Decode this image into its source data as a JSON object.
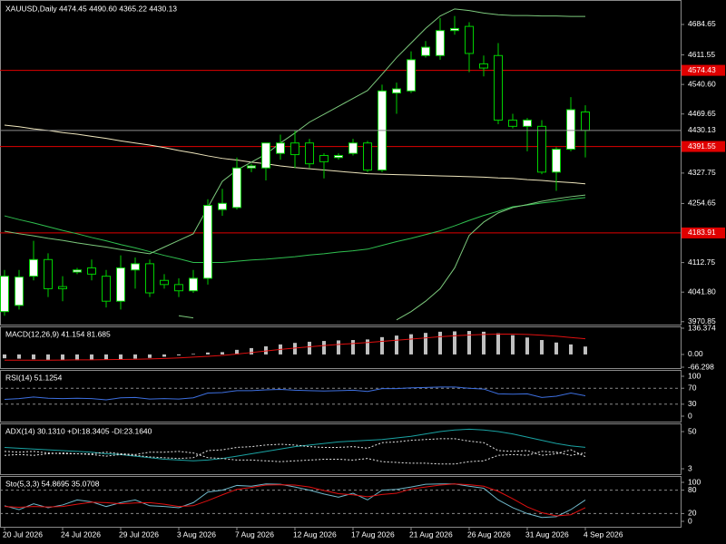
{
  "chart_data": [
    {
      "type": "candlestick",
      "title": "XAUUSD,Daily  4474.45 4490.60 4365.22 4430.13",
      "categories": [
        "20 Jul 2026",
        null,
        null,
        null,
        "24 Jul 2026",
        null,
        null,
        null,
        "29 Jul 2026",
        null,
        null,
        null,
        "3 Aug 2026",
        null,
        null,
        null,
        "7 Aug 2026",
        null,
        null,
        null,
        "12 Aug 2026",
        null,
        null,
        null,
        "17 Aug 2026",
        null,
        null,
        null,
        "21 Aug 2026",
        null,
        null,
        null,
        "26 Aug 2026",
        null,
        null,
        null,
        "31 Aug 2026",
        null,
        null,
        null,
        "4 Sep 2026"
      ],
      "open": [
        3995,
        4010,
        4080,
        4120,
        4055,
        4090,
        4100,
        4080,
        4020,
        4095,
        4110,
        4070,
        4060,
        4045,
        4075,
        4240,
        4245,
        4340,
        4340,
        4375,
        4400,
        4400,
        4370,
        4365,
        4375,
        4400,
        4335,
        4520,
        4525,
        4610,
        4610,
        4670,
        4680,
        4590,
        4610,
        4455,
        4440,
        4440,
        4330,
        4385,
        4474.45
      ],
      "high": [
        4095,
        4095,
        4165,
        4135,
        4080,
        4100,
        4120,
        4095,
        4130,
        4125,
        4120,
        4085,
        4075,
        4095,
        4265,
        4290,
        4365,
        4350,
        4400,
        4420,
        4430,
        4410,
        4375,
        4375,
        4410,
        4405,
        4540,
        4545,
        4620,
        4645,
        4700,
        4705,
        4690,
        4610,
        4640,
        4470,
        4460,
        4455,
        4390,
        4510,
        4490.6
      ],
      "low": [
        3985,
        4000,
        4070,
        4030,
        4020,
        4085,
        4070,
        4005,
        4000,
        4050,
        4030,
        4050,
        4030,
        4040,
        4060,
        4225,
        4240,
        4330,
        4310,
        4360,
        4340,
        4340,
        4315,
        4360,
        4370,
        4330,
        4330,
        4470,
        4520,
        4605,
        4600,
        4660,
        4570,
        4560,
        4445,
        4435,
        4380,
        4325,
        4285,
        4380,
        4365.22
      ],
      "close": [
        4080,
        4078,
        4120,
        4050,
        4050,
        4095,
        4085,
        4020,
        4100,
        4110,
        4040,
        4060,
        4045,
        4075,
        4250,
        4255,
        4340,
        4345,
        4400,
        4400,
        4372,
        4350,
        4355,
        4370,
        4400,
        4335,
        4525,
        4530,
        4600,
        4630,
        4670,
        4675,
        4615,
        4580,
        4455,
        4440,
        4455,
        4330,
        4385,
        4480,
        4430.13
      ],
      "up_color": "#ffffff",
      "down_color": "#000000",
      "wick_color": "#00d000",
      "series": [
        {
          "color": "#efe6bd",
          "values": [
            4443,
            4439,
            4434,
            4430,
            4425,
            4421,
            4416,
            4411,
            4405,
            4400,
            4395,
            4389,
            4382,
            4376,
            4369,
            4363,
            4359,
            4354,
            4350,
            4345,
            4341,
            4338,
            4335,
            4332,
            4329,
            4326,
            4325,
            4324,
            4323,
            4322,
            4321,
            4320,
            4319,
            4318,
            4316,
            4315,
            4312,
            4310,
            4307,
            4305,
            4302
          ]
        },
        {
          "color": "#2fbf4f",
          "values": [
            4225,
            4216,
            4208,
            4199,
            4190,
            4182,
            4173,
            4165,
            4156,
            4148,
            4139,
            4130,
            4122,
            4113,
            4113,
            4113,
            4116,
            4119,
            4121,
            4124,
            4127,
            4131,
            4134,
            4138,
            4141,
            4145,
            4154,
            4163,
            4171,
            4180,
            4189,
            4201,
            4214,
            4226,
            4236,
            4247,
            4251,
            4256,
            4260,
            4265,
            4269
          ]
        },
        {
          "color": "#7cc97c",
          "values": [
            4188,
            4182,
            4177,
            4171,
            4166,
            4160,
            4155,
            4150,
            4144,
            4139,
            4134,
            4150,
            4166,
            4182,
            4245,
            4308,
            4335,
            4354,
            4373,
            4400,
            4424,
            4450,
            4469,
            4488,
            4507,
            4526,
            4565,
            4605,
            4640,
            4675,
            4705,
            4722,
            4718,
            4712,
            4708,
            4706,
            4706,
            4705,
            4705,
            4704,
            4704
          ]
        },
        {
          "color": "#7cc97c",
          "values": [
            null,
            null,
            null,
            null,
            null,
            null,
            null,
            null,
            null,
            null,
            null,
            null,
            3985,
            3980,
            null,
            null,
            null,
            null,
            null,
            null,
            null,
            null,
            null,
            null,
            null,
            null,
            null,
            3975,
            3995,
            4020,
            4050,
            4100,
            4178,
            4210,
            4232,
            4245,
            4252,
            4260,
            4266,
            4271,
            4275
          ]
        }
      ],
      "hlines": [
        4574.43,
        4391.55,
        4183.91
      ],
      "hline_color": "#e00000",
      "last_price_line": true,
      "last_price_color": "#8c8c8c",
      "ylim": [
        3966,
        4743.4
      ],
      "yticks": [
        4684.65,
        4611.55,
        {
          "value": 4540.6,
          "label": "4540.60"
        },
        4469.65,
        4327.75,
        4254.65,
        4112.75,
        {
          "value": 4041.8,
          "label": "4041.80"
        },
        3970.85
      ]
    },
    {
      "type": "macd",
      "label": "MACD(12,26,9) 41.154 81.685",
      "color": "#c0c0c0",
      "values": [
        -20,
        -22,
        -25,
        -28,
        -30,
        -30,
        -28,
        -26,
        -25,
        -22,
        -18,
        -12,
        -5,
        3,
        10,
        12,
        24,
        33,
        42,
        52,
        60,
        66,
        70,
        73,
        75,
        78,
        90,
        98,
        105,
        112,
        118,
        120,
        122,
        118,
        110,
        100,
        88,
        75,
        62,
        52,
        41.154
      ],
      "series": [
        {
          "color": "#e01010",
          "values": [
            -30,
            -30,
            -30,
            -30,
            -29,
            -28,
            -28,
            -27,
            -26,
            -25,
            -23,
            -21,
            -18,
            -14,
            -10,
            -5,
            2,
            10,
            18,
            26,
            33,
            40,
            46,
            52,
            57,
            62,
            68,
            74,
            80,
            86,
            92,
            97,
            101,
            104,
            106,
            106,
            104,
            100,
            95,
            88,
            81.685
          ]
        }
      ],
      "ylim": [
        -66.298,
        136.374
      ],
      "yticks": [
        136.374,
        {
          "value": 0,
          "label": "0.00"
        },
        -66.298
      ]
    },
    {
      "type": "line",
      "label": "RSI(14) 51.1254",
      "series": [
        {
          "color": "#3d6fe0",
          "values": [
            42,
            44,
            48,
            45,
            44,
            45,
            44,
            41,
            46,
            47,
            43,
            44,
            43,
            46,
            58,
            59,
            64,
            64,
            66,
            67,
            65,
            64,
            63,
            64,
            65,
            62,
            69,
            69,
            71,
            72,
            73,
            73,
            70,
            68,
            56,
            55,
            56,
            47,
            50,
            58,
            51.1254
          ]
        }
      ],
      "levels": [
        70,
        30
      ],
      "ylim": [
        0,
        100
      ],
      "yticks": [
        100,
        70,
        30,
        0
      ]
    },
    {
      "type": "line",
      "label": "ADX(14) 30.1310 +DI:18.3405 -DI:23.1640",
      "series": [
        {
          "color": "#1aa3a3",
          "values": [
            30,
            29,
            28,
            27,
            26,
            25,
            24,
            22,
            21,
            19,
            17,
            15,
            14,
            13,
            14,
            16,
            19,
            22,
            25,
            28,
            31,
            33,
            35,
            37,
            38,
            39,
            40,
            42,
            44,
            47,
            50,
            52,
            53,
            52,
            50,
            47,
            43,
            39,
            35,
            32,
            30.131
          ]
        },
        {
          "color": "#e8e8e8",
          "dashed": true,
          "values": [
            25,
            24,
            25,
            23,
            22,
            22,
            21,
            19,
            21,
            20,
            18,
            17,
            16,
            17,
            26,
            27,
            30,
            31,
            33,
            34,
            33,
            31,
            30,
            30,
            31,
            29,
            36,
            37,
            39,
            40,
            41,
            41,
            38,
            36,
            26,
            25,
            26,
            20,
            22,
            27,
            18.3405
          ]
        },
        {
          "color": "#e8e8e8",
          "dashed": true,
          "values": [
            20,
            21,
            20,
            22,
            23,
            22,
            22,
            24,
            22,
            21,
            24,
            24,
            25,
            23,
            17,
            16,
            14,
            14,
            13,
            12,
            13,
            14,
            15,
            15,
            14,
            16,
            12,
            11,
            10,
            10,
            9,
            9,
            12,
            13,
            20,
            21,
            20,
            25,
            24,
            20,
            23.164
          ]
        }
      ],
      "ylim": [
        -2.7,
        59.2
      ],
      "yticks": [
        50,
        3
      ]
    },
    {
      "type": "line",
      "label": "Sto(5,3,3) 54.8695 35.0708",
      "series": [
        {
          "color": "#6fb7c9",
          "values": [
            40,
            30,
            45,
            35,
            42,
            55,
            50,
            38,
            48,
            55,
            40,
            38,
            35,
            48,
            75,
            80,
            92,
            90,
            96,
            95,
            88,
            80,
            70,
            62,
            72,
            55,
            80,
            82,
            88,
            95,
            96,
            96,
            90,
            85,
            55,
            35,
            20,
            10,
            12,
            30,
            54.8695
          ]
        },
        {
          "color": "#e01010",
          "values": [
            38,
            36,
            38,
            37,
            38,
            44,
            49,
            48,
            45,
            47,
            48,
            44,
            38,
            40,
            53,
            68,
            82,
            87,
            93,
            94,
            93,
            88,
            79,
            71,
            68,
            63,
            69,
            72,
            83,
            88,
            93,
            96,
            94,
            90,
            77,
            58,
            37,
            22,
            14,
            17,
            35.0708
          ]
        }
      ],
      "levels": [
        80,
        20
      ],
      "ylim": [
        -11.6,
        109.3
      ],
      "yticks": [
        100,
        80,
        20,
        0
      ]
    }
  ]
}
